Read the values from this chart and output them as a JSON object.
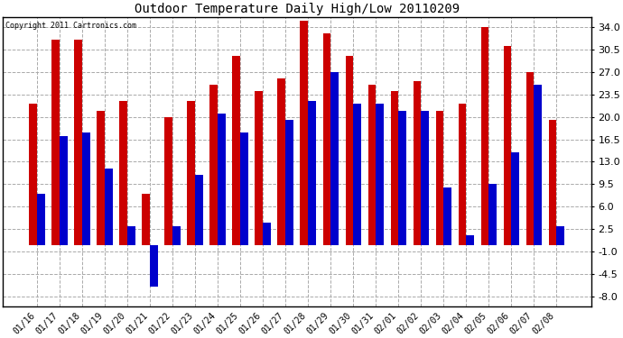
{
  "title": "Outdoor Temperature Daily High/Low 20110209",
  "copyright": "Copyright 2011 Cartronics.com",
  "dates": [
    "01/16",
    "01/17",
    "01/18",
    "01/19",
    "01/20",
    "01/21",
    "01/22",
    "01/23",
    "01/24",
    "01/25",
    "01/26",
    "01/27",
    "01/28",
    "01/29",
    "01/30",
    "01/31",
    "02/01",
    "02/02",
    "02/03",
    "02/04",
    "02/05",
    "02/06",
    "02/07",
    "02/08"
  ],
  "highs": [
    22.0,
    32.0,
    32.0,
    21.0,
    22.5,
    8.0,
    20.0,
    22.5,
    25.0,
    29.5,
    24.0,
    26.0,
    35.0,
    33.0,
    29.5,
    25.0,
    24.0,
    25.5,
    21.0,
    22.0,
    34.0,
    31.0,
    27.0,
    19.5
  ],
  "lows": [
    8.0,
    17.0,
    17.5,
    12.0,
    3.0,
    -6.5,
    3.0,
    11.0,
    20.5,
    17.5,
    3.5,
    19.5,
    22.5,
    27.0,
    22.0,
    22.0,
    21.0,
    21.0,
    9.0,
    1.5,
    9.5,
    14.5,
    25.0,
    3.0
  ],
  "high_color": "#cc0000",
  "low_color": "#0000cc",
  "background_color": "#ffffff",
  "grid_color": "#aaaaaa",
  "yticks": [
    -8.0,
    -4.5,
    -1.0,
    2.5,
    6.0,
    9.5,
    13.0,
    16.5,
    20.0,
    23.5,
    27.0,
    30.5,
    34.0
  ],
  "ylim": [
    -9.5,
    35.5
  ],
  "bar_width": 0.35,
  "figsize": [
    6.9,
    3.75
  ],
  "dpi": 100
}
